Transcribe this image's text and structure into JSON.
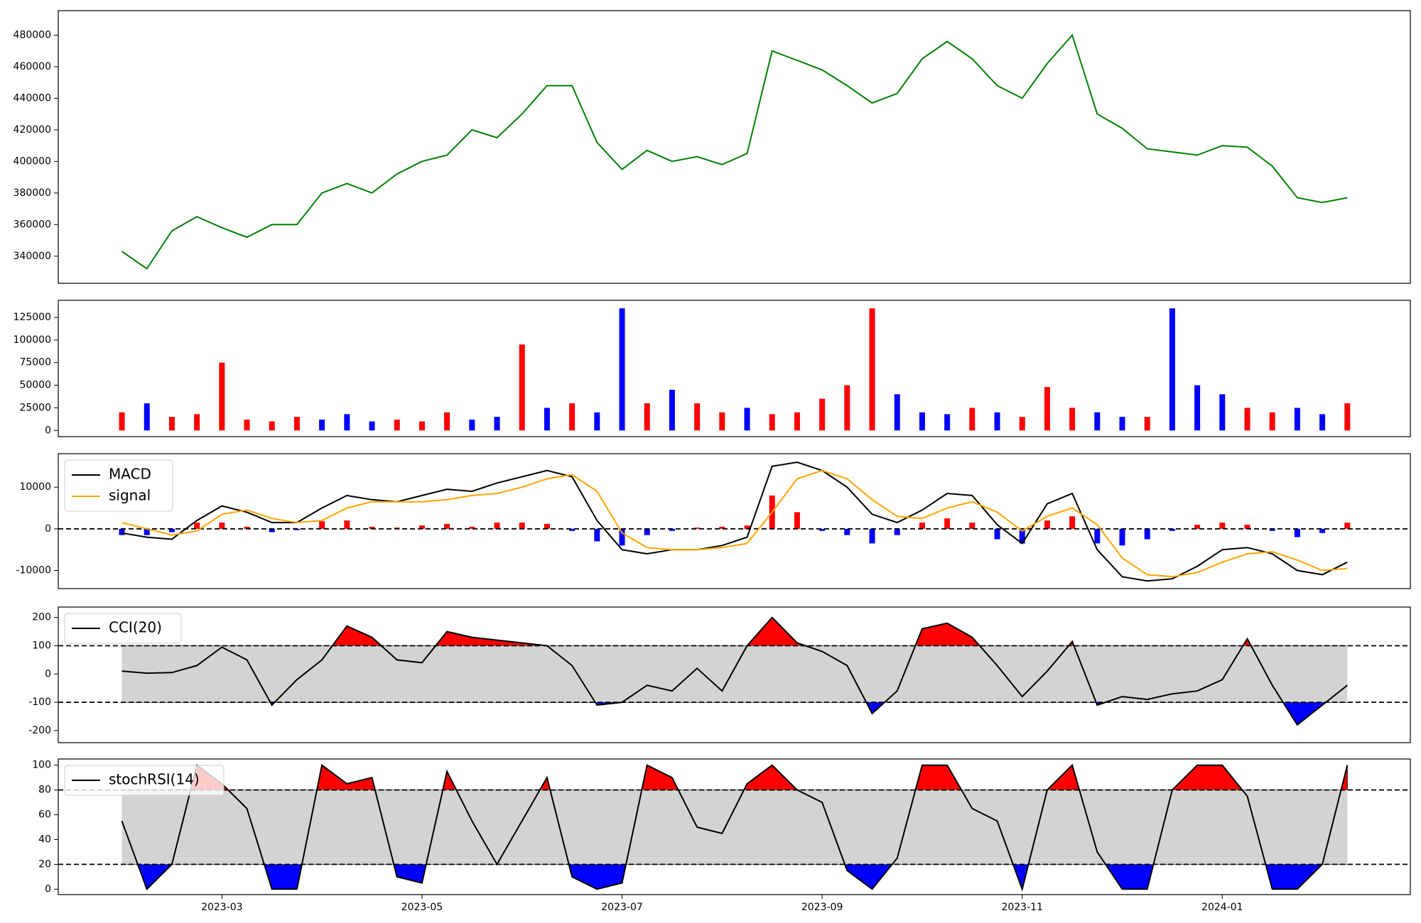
{
  "chart_data": [
    {
      "type": "line",
      "x": [
        0,
        0.25,
        0.5,
        0.75,
        1,
        1.25,
        1.5,
        1.75,
        2,
        2.25,
        2.5,
        2.75,
        3,
        3.25,
        3.5,
        3.75,
        4,
        4.25,
        4.5,
        4.75,
        5,
        5.25,
        5.5,
        5.75,
        6,
        6.25,
        6.5,
        6.75,
        7,
        7.25,
        7.5,
        7.75,
        8,
        8.25,
        8.5,
        8.75,
        9,
        9.25,
        9.5,
        9.75,
        10,
        10.25,
        10.5,
        10.75,
        11,
        11.25,
        11.5,
        11.75,
        12,
        12.25
      ],
      "series": [
        {
          "color": "green",
          "values": [
            343000,
            332000,
            356000,
            365000,
            358000,
            352000,
            360000,
            360000,
            380000,
            386000,
            380000,
            392000,
            400000,
            404000,
            420000,
            415000,
            430000,
            448000,
            448000,
            412000,
            395000,
            407000,
            400000,
            403000,
            398000,
            405000,
            470000,
            464000,
            458000,
            448000,
            437000,
            443000,
            465000,
            476000,
            465000,
            448000,
            440000,
            462000,
            480000,
            430000,
            421000,
            408000,
            406000,
            404000,
            410000,
            409000,
            397000,
            377000,
            374000,
            377000
          ]
        }
      ],
      "xlim": [
        -0.636,
        12.88
      ],
      "ylim": [
        322800,
        495500
      ],
      "yticks": [
        340000,
        360000,
        380000,
        400000,
        420000,
        440000,
        460000,
        480000
      ]
    },
    {
      "type": "bar",
      "x": [
        0,
        0.25,
        0.5,
        0.75,
        1,
        1.25,
        1.5,
        1.75,
        2,
        2.25,
        2.5,
        2.75,
        3,
        3.25,
        3.5,
        3.75,
        4,
        4.25,
        4.5,
        4.75,
        5,
        5.25,
        5.5,
        5.75,
        6,
        6.25,
        6.5,
        6.75,
        7,
        7.25,
        7.5,
        7.75,
        8,
        8.25,
        8.5,
        8.75,
        9,
        9.25,
        9.5,
        9.75,
        10,
        10.25,
        10.5,
        10.75,
        11,
        11.25,
        11.5,
        11.75,
        12,
        12.25
      ],
      "values": [
        20000,
        30000,
        15000,
        18000,
        75000,
        12000,
        10000,
        15000,
        12000,
        18000,
        10000,
        12000,
        10000,
        20000,
        12000,
        15000,
        95000,
        25000,
        30000,
        20000,
        135000,
        30000,
        45000,
        30000,
        20000,
        25000,
        18000,
        20000,
        35000,
        50000,
        135000,
        40000,
        20000,
        18000,
        25000,
        20000,
        15000,
        48000,
        25000,
        20000,
        15000,
        15000,
        135000,
        50000,
        40000,
        25000,
        20000,
        25000,
        18000,
        30000
      ],
      "colors": [
        "red",
        "blue",
        "red",
        "red",
        "red",
        "red",
        "red",
        "red",
        "blue",
        "blue",
        "blue",
        "red",
        "red",
        "red",
        "blue",
        "blue",
        "red",
        "blue",
        "red",
        "blue",
        "blue",
        "red",
        "blue",
        "red",
        "red",
        "blue",
        "red",
        "red",
        "red",
        "red",
        "red",
        "blue",
        "blue",
        "blue",
        "red",
        "blue",
        "red",
        "red",
        "red",
        "blue",
        "blue",
        "red",
        "blue",
        "blue",
        "blue",
        "red",
        "red",
        "blue",
        "blue",
        "red"
      ],
      "xlim": [
        -0.636,
        12.88
      ],
      "ylim": [
        -6850,
        143850
      ],
      "yticks": [
        0,
        25000,
        50000,
        75000,
        100000,
        125000
      ]
    },
    {
      "type": "line",
      "x": [
        0,
        0.25,
        0.5,
        0.75,
        1,
        1.25,
        1.5,
        1.75,
        2,
        2.25,
        2.5,
        2.75,
        3,
        3.25,
        3.5,
        3.75,
        4,
        4.25,
        4.5,
        4.75,
        5,
        5.25,
        5.5,
        5.75,
        6,
        6.25,
        6.5,
        6.75,
        7,
        7.25,
        7.5,
        7.75,
        8,
        8.25,
        8.5,
        8.75,
        9,
        9.25,
        9.5,
        9.75,
        10,
        10.25,
        10.5,
        10.75,
        11,
        11.25,
        11.5,
        11.75,
        12,
        12.25
      ],
      "series": [
        {
          "name": "MACD",
          "color": "black",
          "values": [
            -1000,
            -2000,
            -2500,
            2000,
            5500,
            4000,
            1500,
            1500,
            5000,
            8000,
            7000,
            6500,
            8000,
            9500,
            9000,
            11000,
            12500,
            14000,
            12500,
            2000,
            -5000,
            -6000,
            -5000,
            -5000,
            -4000,
            -2000,
            15000,
            16000,
            14000,
            10000,
            3500,
            1500,
            4500,
            8500,
            8000,
            1000,
            -3500,
            6000,
            8500,
            -5000,
            -11500,
            -12500,
            -12000,
            -9000,
            -5000,
            -4500,
            -6000,
            -10000,
            -11000,
            -8000
          ]
        },
        {
          "name": "signal",
          "color": "orange",
          "values": [
            1500,
            0,
            -1500,
            -500,
            3500,
            4500,
            2500,
            1500,
            2000,
            5000,
            6500,
            6500,
            6500,
            7000,
            8000,
            8500,
            10000,
            12000,
            13000,
            9000,
            -1000,
            -4500,
            -5000,
            -5000,
            -4500,
            -3500,
            4000,
            12000,
            14000,
            12000,
            7000,
            3000,
            2500,
            5000,
            6500,
            4000,
            -500,
            3000,
            5000,
            1000,
            -7000,
            -11000,
            -11500,
            -10500,
            -8000,
            -6000,
            -5500,
            -7500,
            -10000,
            -9500
          ]
        }
      ],
      "histogram": {
        "pos_color": "red",
        "neg_color": "blue",
        "values": [
          -1500,
          -1500,
          -800,
          1500,
          1500,
          500,
          -800,
          -300,
          1800,
          2000,
          500,
          300,
          800,
          1200,
          500,
          1500,
          1500,
          1200,
          -500,
          -3000,
          -4000,
          -1500,
          -500,
          300,
          500,
          800,
          8000,
          4000,
          -500,
          -1500,
          -3500,
          -1500,
          1500,
          2500,
          1500,
          -2500,
          -3500,
          2000,
          3000,
          -3500,
          -4000,
          -2500,
          -500,
          1000,
          1500,
          1000,
          -500,
          -2000,
          -1000,
          1500
        ]
      },
      "hlines": [
        0
      ],
      "legend": "upper left",
      "xlim": [
        -0.636,
        12.88
      ],
      "ylim": [
        -14348,
        18043
      ],
      "yticks": [
        -10000,
        0,
        10000
      ]
    },
    {
      "type": "band",
      "x": [
        0,
        0.25,
        0.5,
        0.75,
        1,
        1.25,
        1.5,
        1.75,
        2,
        2.25,
        2.5,
        2.75,
        3,
        3.25,
        3.5,
        3.75,
        4,
        4.25,
        4.5,
        4.75,
        5,
        5.25,
        5.5,
        5.75,
        6,
        6.25,
        6.5,
        6.75,
        7,
        7.25,
        7.5,
        7.75,
        8,
        8.25,
        8.5,
        8.75,
        9,
        9.25,
        9.5,
        9.75,
        10,
        10.25,
        10.5,
        10.75,
        11,
        11.25,
        11.5,
        11.75,
        12,
        12.25
      ],
      "series": [
        {
          "name": "CCI(20)",
          "color": "black",
          "values": [
            10,
            3,
            5,
            30,
            95,
            50,
            -110,
            -20,
            50,
            170,
            130,
            50,
            40,
            150,
            130,
            120,
            110,
            100,
            30,
            -110,
            -100,
            -40,
            -60,
            20,
            -60,
            100,
            200,
            110,
            80,
            30,
            -140,
            -60,
            160,
            180,
            130,
            30,
            -80,
            10,
            115,
            -110,
            -80,
            -90,
            -70,
            -60,
            -20,
            125,
            -40,
            -180,
            -110,
            -40
          ]
        }
      ],
      "hlines": [
        100,
        -100
      ],
      "band_color": "lightgray",
      "above_color": "red",
      "below_color": "blue",
      "legend": "upper left",
      "xlim": [
        -0.636,
        12.88
      ],
      "ylim": [
        -243,
        237
      ],
      "yticks": [
        -200,
        -100,
        0,
        100,
        200
      ]
    },
    {
      "type": "band",
      "x": [
        0,
        0.25,
        0.5,
        0.75,
        1,
        1.25,
        1.5,
        1.75,
        2,
        2.25,
        2.5,
        2.75,
        3,
        3.25,
        3.5,
        3.75,
        4,
        4.25,
        4.5,
        4.75,
        5,
        5.25,
        5.5,
        5.75,
        6,
        6.25,
        6.5,
        6.75,
        7,
        7.25,
        7.5,
        7.75,
        8,
        8.25,
        8.5,
        8.75,
        9,
        9.25,
        9.5,
        9.75,
        10,
        10.25,
        10.5,
        10.75,
        11,
        11.25,
        11.5,
        11.75,
        12,
        12.25
      ],
      "series": [
        {
          "name": "stochRSI(14)",
          "color": "black",
          "values": [
            55,
            0,
            20,
            100,
            85,
            65,
            0,
            0,
            100,
            85,
            90,
            10,
            5,
            95,
            55,
            20,
            55,
            90,
            10,
            0,
            5,
            100,
            90,
            50,
            45,
            85,
            100,
            80,
            70,
            15,
            0,
            25,
            100,
            100,
            65,
            55,
            0,
            80,
            100,
            30,
            0,
            0,
            80,
            100,
            100,
            75,
            0,
            0,
            20,
            100
          ]
        }
      ],
      "hlines": [
        80,
        20
      ],
      "band_color": "lightgray",
      "above_color": "red",
      "below_color": "blue",
      "legend": "upper left",
      "xlim": [
        -0.636,
        12.88
      ],
      "ylim": [
        -4.4,
        105
      ],
      "yticks": [
        0,
        20,
        40,
        60,
        80,
        100
      ],
      "xticks": [
        {
          "value": 1,
          "label": "2023-03"
        },
        {
          "value": 3,
          "label": "2023-05"
        },
        {
          "value": 5,
          "label": "2023-07"
        },
        {
          "value": 7,
          "label": "2023-09"
        },
        {
          "value": 9,
          "label": "2023-11"
        },
        {
          "value": 11,
          "label": "2024-01"
        }
      ]
    }
  ]
}
